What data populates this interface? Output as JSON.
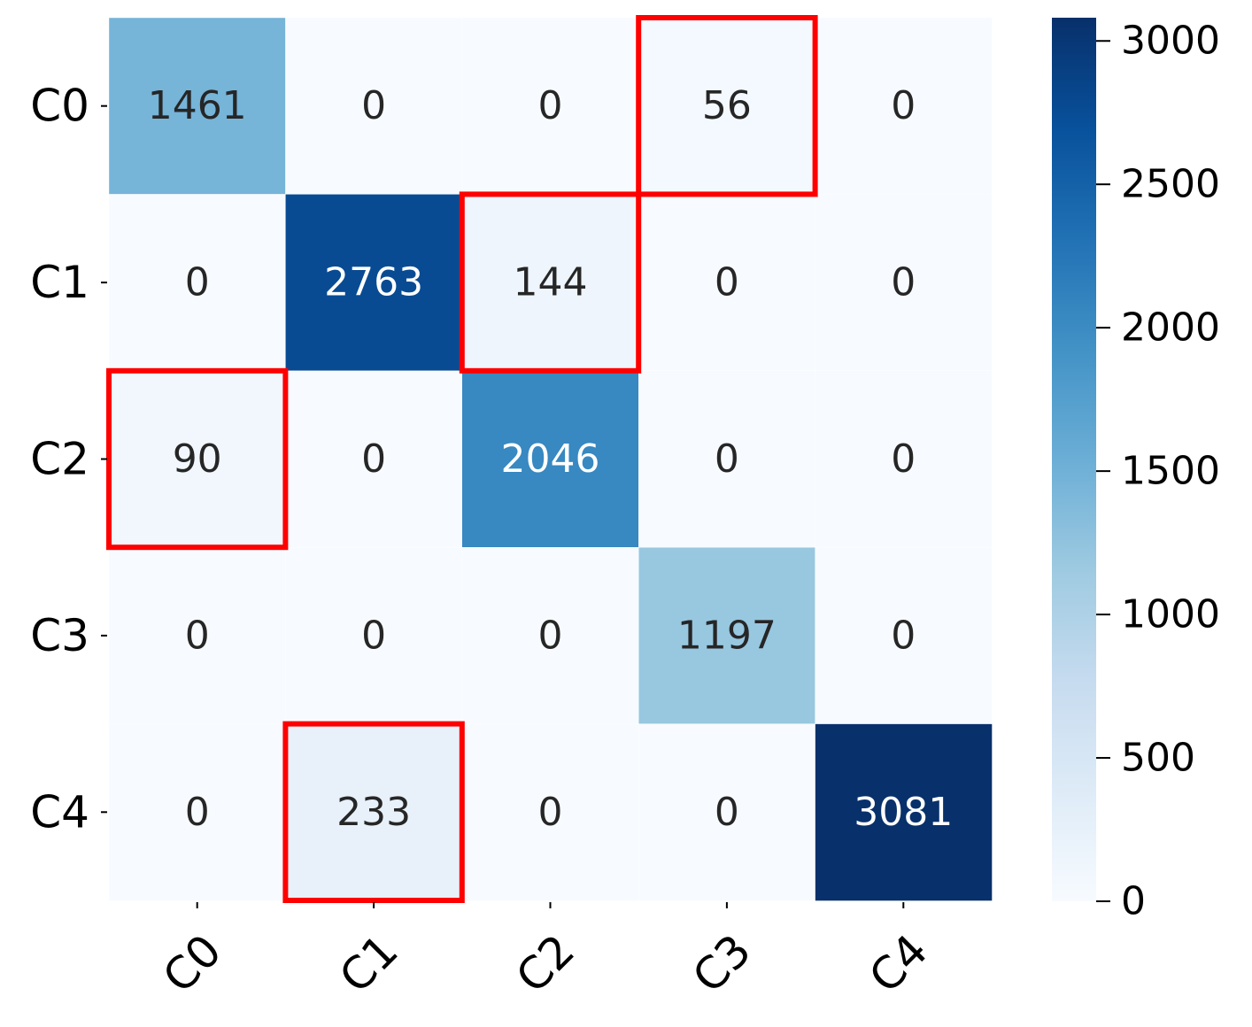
{
  "chart_data": {
    "type": "heatmap",
    "title": "",
    "xlabel": "",
    "ylabel": "",
    "row_labels": [
      "C0",
      "C1",
      "C2",
      "C3",
      "C4"
    ],
    "col_labels": [
      "C0",
      "C1",
      "C2",
      "C3",
      "C4"
    ],
    "values": [
      [
        1461,
        0,
        0,
        56,
        0
      ],
      [
        0,
        2763,
        144,
        0,
        0
      ],
      [
        90,
        0,
        2046,
        0,
        0
      ],
      [
        0,
        0,
        0,
        1197,
        0
      ],
      [
        0,
        233,
        0,
        0,
        3081
      ]
    ],
    "colormap": "Blues",
    "colormap_low": "#f7fbff",
    "colormap_high": "#08306b",
    "color_range": [
      0,
      3081
    ],
    "colorbar_ticks": [
      0,
      500,
      1000,
      1500,
      2000,
      2500,
      3000
    ],
    "highlighted_cells": [
      [
        0,
        3
      ],
      [
        1,
        2
      ],
      [
        2,
        0
      ],
      [
        4,
        1
      ]
    ],
    "highlight_color": "#ff0000",
    "text_color_dark": "#262626",
    "text_color_light": "#ffffff"
  }
}
